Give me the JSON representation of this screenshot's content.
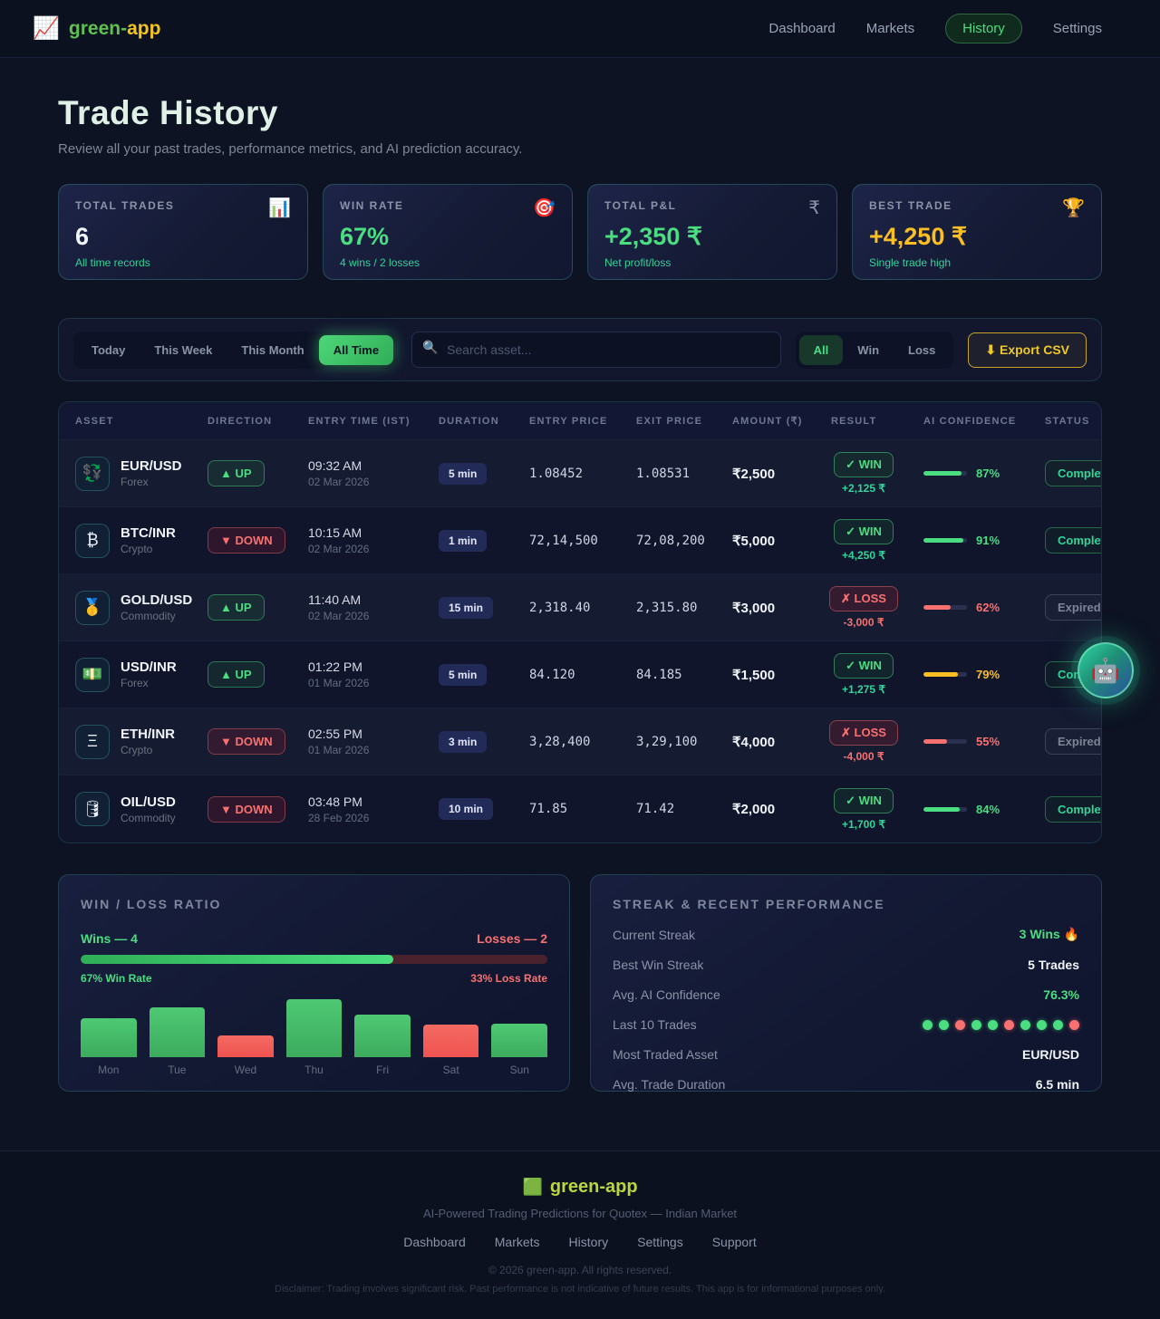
{
  "colors": {
    "accent_green": "#4ade80",
    "accent_red": "#f87171",
    "accent_yellow": "#fbbf24"
  },
  "header": {
    "logo_icon": "📈",
    "brand_green": "green-",
    "brand_yellow": "app",
    "nav": [
      {
        "label": "Dashboard",
        "active": false
      },
      {
        "label": "Markets",
        "active": false
      },
      {
        "label": "History",
        "active": true
      },
      {
        "label": "Settings",
        "active": false
      }
    ]
  },
  "page": {
    "title": "Trade History",
    "subtitle": "Review all your past trades, performance metrics, and AI prediction accuracy."
  },
  "stats": [
    {
      "label": "TOTAL TRADES",
      "icon": "📊",
      "icon_name": "bar-chart-icon",
      "value": "6",
      "value_color": "#f1f5f9",
      "sub": "All time records"
    },
    {
      "label": "WIN RATE",
      "icon": "🎯",
      "icon_name": "target-icon",
      "value": "67%",
      "value_color": "#4ade80",
      "sub": "4 wins / 2 losses"
    },
    {
      "label": "TOTAL P&L",
      "icon": "₹",
      "icon_name": "rupee-icon",
      "value": "+2,350 ₹",
      "value_color": "#4ade80",
      "sub": "Net profit/loss"
    },
    {
      "label": "BEST TRADE",
      "icon": "🏆",
      "icon_name": "trophy-icon",
      "value": "+4,250 ₹",
      "value_color": "#fbbf24",
      "sub": "Single trade high"
    }
  ],
  "filters": {
    "time_tabs": [
      {
        "label": "Today",
        "active": false
      },
      {
        "label": "This Week",
        "active": false
      },
      {
        "label": "This Month",
        "active": false
      },
      {
        "label": "All Time",
        "active": true
      }
    ],
    "search_icon": "🔍",
    "search_placeholder": "Search asset...",
    "result_tabs": [
      {
        "label": "All",
        "active": true
      },
      {
        "label": "Win",
        "active": false
      },
      {
        "label": "Loss",
        "active": false
      }
    ],
    "export_label": "⬇ Export CSV"
  },
  "table": {
    "columns": [
      "ASSET",
      "DIRECTION",
      "ENTRY TIME (IST)",
      "DURATION",
      "ENTRY PRICE",
      "EXIT PRICE",
      "AMOUNT (₹)",
      "RESULT",
      "AI CONFIDENCE",
      "STATUS"
    ],
    "rows": [
      {
        "icon": "💱",
        "icon_name": "currency-exchange-icon",
        "asset": "EUR/USD",
        "category": "Forex",
        "direction": "UP",
        "direction_label": "▲ UP",
        "time": "09:32 AM",
        "date": "02 Mar 2026",
        "duration": "5 min",
        "entry": "1.08452",
        "exit": "1.08531",
        "amount": "₹2,500",
        "result": "WIN",
        "result_label": "✓ WIN",
        "pnl": "+2,125 ₹",
        "confidence": 87,
        "confidence_label": "87%",
        "confidence_color": "#4ade80",
        "status": "Completed"
      },
      {
        "icon": "₿",
        "icon_name": "bitcoin-icon",
        "asset": "BTC/INR",
        "category": "Crypto",
        "direction": "DOWN",
        "direction_label": "▼ DOWN",
        "time": "10:15 AM",
        "date": "02 Mar 2026",
        "duration": "1 min",
        "entry": "72,14,500",
        "exit": "72,08,200",
        "amount": "₹5,000",
        "result": "WIN",
        "result_label": "✓ WIN",
        "pnl": "+4,250 ₹",
        "confidence": 91,
        "confidence_label": "91%",
        "confidence_color": "#4ade80",
        "status": "Completed"
      },
      {
        "icon": "🥇",
        "icon_name": "gold-medal-icon",
        "asset": "GOLD/USD",
        "category": "Commodity",
        "direction": "UP",
        "direction_label": "▲ UP",
        "time": "11:40 AM",
        "date": "02 Mar 2026",
        "duration": "15 min",
        "entry": "2,318.40",
        "exit": "2,315.80",
        "amount": "₹3,000",
        "result": "LOSS",
        "result_label": "✗ LOSS",
        "pnl": "-3,000 ₹",
        "confidence": 62,
        "confidence_label": "62%",
        "confidence_color": "#f87171",
        "status": "Expired"
      },
      {
        "icon": "💵",
        "icon_name": "dollar-banknote-icon",
        "asset": "USD/INR",
        "category": "Forex",
        "direction": "UP",
        "direction_label": "▲ UP",
        "time": "01:22 PM",
        "date": "01 Mar 2026",
        "duration": "5 min",
        "entry": "84.120",
        "exit": "84.185",
        "amount": "₹1,500",
        "result": "WIN",
        "result_label": "✓ WIN",
        "pnl": "+1,275 ₹",
        "confidence": 79,
        "confidence_label": "79%",
        "confidence_color": "#fbbf24",
        "status": "Completed"
      },
      {
        "icon": "Ξ",
        "icon_name": "ethereum-icon",
        "asset": "ETH/INR",
        "category": "Crypto",
        "direction": "DOWN",
        "direction_label": "▼ DOWN",
        "time": "02:55 PM",
        "date": "01 Mar 2026",
        "duration": "3 min",
        "entry": "3,28,400",
        "exit": "3,29,100",
        "amount": "₹4,000",
        "result": "LOSS",
        "result_label": "✗ LOSS",
        "pnl": "-4,000 ₹",
        "confidence": 55,
        "confidence_label": "55%",
        "confidence_color": "#f87171",
        "status": "Expired"
      },
      {
        "icon": "🛢",
        "icon_name": "oil-drum-icon",
        "asset": "OIL/USD",
        "category": "Commodity",
        "direction": "DOWN",
        "direction_label": "▼ DOWN",
        "time": "03:48 PM",
        "date": "28 Feb 2026",
        "duration": "10 min",
        "entry": "71.85",
        "exit": "71.42",
        "amount": "₹2,000",
        "result": "WIN",
        "result_label": "✓ WIN",
        "pnl": "+1,700 ₹",
        "confidence": 84,
        "confidence_label": "84%",
        "confidence_color": "#4ade80",
        "status": "Completed"
      }
    ]
  },
  "winloss": {
    "title": "WIN / LOSS RATIO",
    "wins_label": "Wins — 4",
    "losses_label": "Losses — 2",
    "win_pct": 67,
    "win_rate_label": "67% Win Rate",
    "loss_rate_label": "33% Loss Rate",
    "chart": {
      "type": "bar",
      "categories": [
        "Mon",
        "Tue",
        "Wed",
        "Thu",
        "Fri",
        "Sat",
        "Sun"
      ],
      "values": [
        67,
        86,
        37,
        100,
        73,
        56,
        58
      ],
      "kinds": [
        "win",
        "win",
        "loss",
        "win",
        "win",
        "loss",
        "win"
      ]
    }
  },
  "streak": {
    "title": "STREAK & RECENT PERFORMANCE",
    "rows": [
      {
        "label": "Current Streak",
        "value": "3 Wins 🔥",
        "style": "green"
      },
      {
        "label": "Best Win Streak",
        "value": "5 Trades",
        "style": "bold"
      },
      {
        "label": "Avg. AI Confidence",
        "value": "76.3%",
        "style": "green"
      },
      {
        "label": "Last 10 Trades",
        "style": "dots",
        "dots": [
          "win",
          "win",
          "loss",
          "win",
          "win",
          "loss",
          "win",
          "win",
          "win",
          "loss"
        ]
      },
      {
        "label": "Most Traded Asset",
        "value": "EUR/USD",
        "style": "bold"
      },
      {
        "label": "Avg. Trade Duration",
        "value": "6.5 min",
        "style": "bold"
      }
    ]
  },
  "chatbot_icon": "🤖",
  "footer": {
    "logo_icon": "🟩",
    "brand": "green-app",
    "tagline": "AI-Powered Trading Predictions for Quotex — Indian Market",
    "links": [
      "Dashboard",
      "Markets",
      "History",
      "Settings",
      "Support"
    ],
    "copyright": "© 2026 green-app. All rights reserved.",
    "disclaimer": "Disclaimer: Trading involves significant risk. Past performance is not indicative of future results. This app is for informational purposes only."
  }
}
